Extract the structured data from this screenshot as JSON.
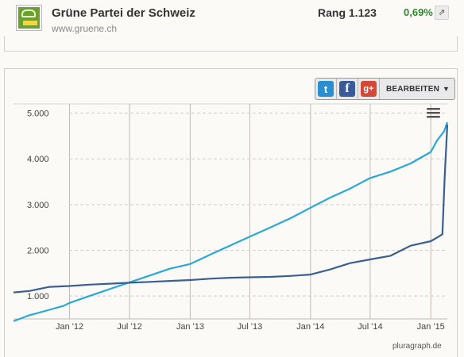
{
  "header": {
    "party_name": "Grüne Partei der Schweiz",
    "url": "www.gruene.ch",
    "rank": "Rang 1.123",
    "change": "0,69%",
    "change_color": "#2e8a2e",
    "external_icon": "external-link-icon"
  },
  "toolbar": {
    "twitter_glyph": "t",
    "facebook_glyph": "f",
    "googleplus_glyph": "g+",
    "edit_label": "BEARBEITEN",
    "edit_caret": "▼"
  },
  "footer": {
    "credit": "pluragraph.de"
  },
  "chart_data": {
    "type": "line",
    "x_ticks": [
      "Jan '12",
      "Jul '12",
      "Jan '13",
      "Jul '13",
      "Jan '14",
      "Jul '14",
      "Jan '15"
    ],
    "y_ticks": [
      "1.000",
      "2.000",
      "3.000",
      "4.000",
      "5.000"
    ],
    "ylim": [
      500,
      5200
    ],
    "xlim": [
      "2011-07-15",
      "2015-02-20"
    ],
    "grid": true,
    "series": [
      {
        "color": "#29a9d4",
        "points": [
          [
            "2011-07-15",
            450
          ],
          [
            "2011-09-01",
            580
          ],
          [
            "2011-11-01",
            700
          ],
          [
            "2011-12-15",
            790
          ],
          [
            "2012-01-01",
            850
          ],
          [
            "2012-03-01",
            1000
          ],
          [
            "2012-05-01",
            1150
          ],
          [
            "2012-07-01",
            1300
          ],
          [
            "2012-09-01",
            1450
          ],
          [
            "2012-11-01",
            1600
          ],
          [
            "2013-01-01",
            1700
          ],
          [
            "2013-03-01",
            1900
          ],
          [
            "2013-05-01",
            2100
          ],
          [
            "2013-07-01",
            2300
          ],
          [
            "2013-09-01",
            2500
          ],
          [
            "2013-11-01",
            2700
          ],
          [
            "2014-01-01",
            2930
          ],
          [
            "2014-03-01",
            3150
          ],
          [
            "2014-05-01",
            3350
          ],
          [
            "2014-07-01",
            3580
          ],
          [
            "2014-09-01",
            3720
          ],
          [
            "2014-11-01",
            3900
          ],
          [
            "2015-01-01",
            4150
          ],
          [
            "2015-01-20",
            4400
          ],
          [
            "2015-02-10",
            4600
          ],
          [
            "2015-02-20",
            4800
          ]
        ]
      },
      {
        "color": "#3b5f8f",
        "points": [
          [
            "2011-07-15",
            1080
          ],
          [
            "2011-09-01",
            1110
          ],
          [
            "2011-11-01",
            1200
          ],
          [
            "2012-01-01",
            1220
          ],
          [
            "2012-03-01",
            1250
          ],
          [
            "2012-05-01",
            1270
          ],
          [
            "2012-07-01",
            1290
          ],
          [
            "2012-09-01",
            1310
          ],
          [
            "2012-11-01",
            1330
          ],
          [
            "2013-01-01",
            1350
          ],
          [
            "2013-03-01",
            1380
          ],
          [
            "2013-05-01",
            1400
          ],
          [
            "2013-07-01",
            1410
          ],
          [
            "2013-09-01",
            1420
          ],
          [
            "2013-11-01",
            1440
          ],
          [
            "2014-01-01",
            1470
          ],
          [
            "2014-03-01",
            1580
          ],
          [
            "2014-05-01",
            1720
          ],
          [
            "2014-07-01",
            1800
          ],
          [
            "2014-09-01",
            1880
          ],
          [
            "2014-11-01",
            2100
          ],
          [
            "2015-01-01",
            2200
          ],
          [
            "2015-01-25",
            2300
          ],
          [
            "2015-02-05",
            2350
          ],
          [
            "2015-02-12",
            3600
          ],
          [
            "2015-02-20",
            4750
          ]
        ]
      }
    ]
  }
}
